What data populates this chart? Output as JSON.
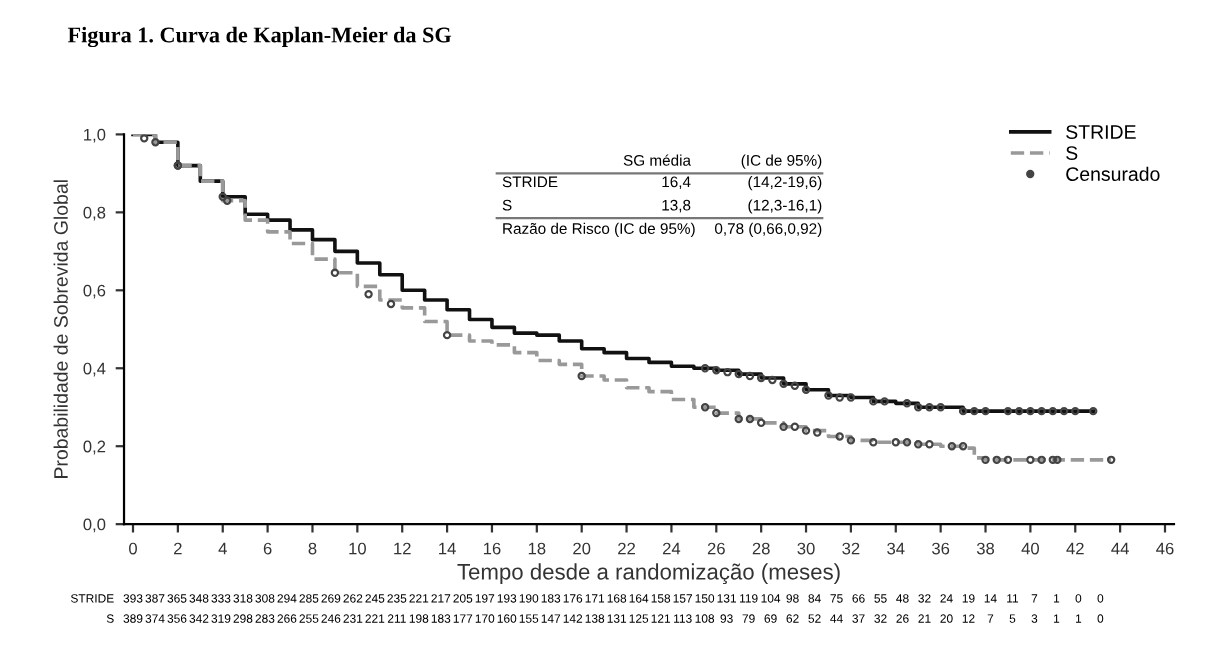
{
  "chart_data": {
    "type": "step",
    "title": "Figura 1. Curva de Kaplan-Meier da SG",
    "xlabel": "Tempo desde a randomização (meses)",
    "ylabel": "Probabilidade de Sobrevida Global",
    "xlim": [
      -0.4,
      46.4
    ],
    "ylim": [
      0,
      1.0
    ],
    "xticks": [
      0,
      2,
      4,
      6,
      8,
      10,
      12,
      14,
      16,
      18,
      20,
      22,
      24,
      26,
      28,
      30,
      32,
      34,
      36,
      38,
      40,
      42,
      44,
      46
    ],
    "yticks": [
      {
        "value": 0,
        "label": "0,0"
      },
      {
        "value": 0.2,
        "label": "0,2"
      },
      {
        "value": 0.4,
        "label": "0,4"
      },
      {
        "value": 0.6,
        "label": "0,6"
      },
      {
        "value": 0.8,
        "label": "0,8"
      },
      {
        "value": 1.0,
        "label": "1,0"
      }
    ],
    "grid": false,
    "legend": "top right",
    "series": [
      {
        "name": "STRIDE",
        "color": "#111111",
        "line_style": "solid",
        "x": [
          0,
          1,
          2,
          3,
          4,
          5,
          6,
          7,
          8,
          9,
          10,
          11,
          12,
          13,
          14,
          15,
          16,
          17,
          18,
          19,
          20,
          21,
          22,
          23,
          24,
          25,
          26,
          27,
          28,
          29,
          30,
          31,
          32,
          33,
          34,
          35,
          36,
          37,
          38,
          42.8
        ],
        "values": [
          1.0,
          0.98,
          0.92,
          0.88,
          0.84,
          0.795,
          0.78,
          0.755,
          0.73,
          0.7,
          0.67,
          0.64,
          0.6,
          0.575,
          0.55,
          0.525,
          0.505,
          0.49,
          0.485,
          0.47,
          0.45,
          0.44,
          0.425,
          0.415,
          0.405,
          0.4,
          0.395,
          0.385,
          0.375,
          0.36,
          0.345,
          0.33,
          0.325,
          0.315,
          0.31,
          0.3,
          0.3,
          0.29,
          0.29,
          0.29
        ]
      },
      {
        "name": "S",
        "color": "#999999",
        "line_style": "dashed",
        "x": [
          0,
          1,
          2,
          3,
          4,
          5,
          6,
          7,
          8,
          9,
          10,
          11,
          12,
          13,
          14,
          15,
          16,
          17,
          18,
          19,
          20,
          21,
          22,
          23,
          24,
          25,
          26,
          27,
          28,
          29,
          30,
          31,
          32,
          33,
          34,
          35,
          36,
          37,
          37.5,
          38,
          43.6
        ],
        "values": [
          1.0,
          0.98,
          0.92,
          0.88,
          0.83,
          0.78,
          0.75,
          0.72,
          0.68,
          0.645,
          0.61,
          0.575,
          0.555,
          0.52,
          0.485,
          0.47,
          0.46,
          0.44,
          0.42,
          0.41,
          0.38,
          0.37,
          0.35,
          0.34,
          0.32,
          0.3,
          0.285,
          0.27,
          0.26,
          0.25,
          0.24,
          0.225,
          0.215,
          0.21,
          0.21,
          0.205,
          0.2,
          0.195,
          0.17,
          0.165,
          0.165
        ]
      },
      {
        "name": "Censurado",
        "type": "scatter",
        "color": "#444444",
        "marker": "circle",
        "x": [
          1,
          2,
          4,
          25.5,
          26,
          26.5,
          27,
          27.5,
          28,
          28.5,
          29,
          29.5,
          30,
          31,
          31.5,
          32,
          33,
          33.5,
          34.5,
          35,
          35.5,
          36,
          37,
          37.5,
          38,
          39,
          39.5,
          40,
          40.5,
          41,
          41.5,
          42,
          42.8,
          0.5,
          2,
          4.2,
          9,
          10.5,
          11.5,
          14,
          20,
          25.5,
          26,
          27,
          27.5,
          28,
          29,
          29.5,
          30,
          30.5,
          31.5,
          32,
          33,
          34,
          34.5,
          35,
          35.5,
          36.5,
          37,
          38,
          38.5,
          39,
          40,
          40.5,
          41,
          41.2,
          43.6
        ],
        "values": [
          0.98,
          0.92,
          0.84,
          0.4,
          0.395,
          0.39,
          0.385,
          0.38,
          0.375,
          0.37,
          0.36,
          0.355,
          0.345,
          0.33,
          0.325,
          0.325,
          0.315,
          0.315,
          0.31,
          0.3,
          0.3,
          0.3,
          0.29,
          0.29,
          0.29,
          0.29,
          0.29,
          0.29,
          0.29,
          0.29,
          0.29,
          0.29,
          0.29,
          0.99,
          0.92,
          0.83,
          0.645,
          0.59,
          0.565,
          0.485,
          0.38,
          0.3,
          0.285,
          0.27,
          0.27,
          0.26,
          0.25,
          0.25,
          0.24,
          0.235,
          0.225,
          0.215,
          0.21,
          0.21,
          0.21,
          0.205,
          0.205,
          0.2,
          0.2,
          0.165,
          0.165,
          0.165,
          0.165,
          0.165,
          0.165,
          0.165,
          0.165
        ]
      }
    ],
    "annotations": [
      "SG média",
      "(IC de 95%)",
      "STRIDE",
      "16,4",
      "(14,2-19,6)",
      "S",
      "13,8",
      "(12,3-16,1)",
      "Razão de Risco (IC de 95%)",
      "0,78 (0,66,0,92)",
      "STRIDE",
      "393",
      "387",
      "365",
      "348",
      "333",
      "318",
      "308",
      "294",
      "285",
      "269",
      "262",
      "245",
      "235",
      "221",
      "217",
      "205",
      "197",
      "193",
      "190",
      "183",
      "176",
      "171",
      "168",
      "164",
      "158",
      "157",
      "150",
      "131",
      "119",
      "104",
      "98",
      "84",
      "75",
      "66",
      "55",
      "48",
      "32",
      "24",
      "19",
      "14",
      "11",
      "7",
      "1",
      "0",
      "0",
      "S",
      "389",
      "374",
      "356",
      "342",
      "319",
      "298",
      "283",
      "266",
      "255",
      "246",
      "231",
      "221",
      "211",
      "198",
      "183",
      "177",
      "170",
      "160",
      "155",
      "147",
      "142",
      "138",
      "131",
      "125",
      "121",
      "113",
      "108",
      "93",
      "79",
      "69",
      "62",
      "52",
      "44",
      "37",
      "32",
      "26",
      "21",
      "20",
      "12",
      "7",
      "5",
      "3",
      "1",
      "1",
      "0"
    ]
  }
}
